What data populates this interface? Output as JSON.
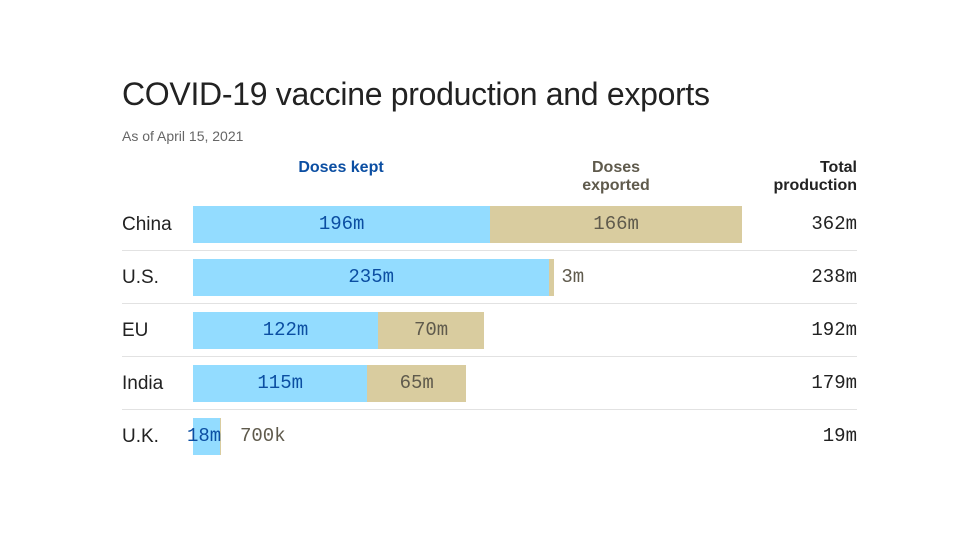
{
  "chart_data": {
    "type": "bar",
    "stacked": true,
    "orientation": "horizontal",
    "title": "COVID-19 vaccine production and exports",
    "subtitle": "As of April 15, 2021",
    "column_headers": {
      "kept": "Doses kept",
      "exported": "Doses exported",
      "total": "Total production"
    },
    "categories": [
      "China",
      "U.S.",
      "EU",
      "India",
      "U.K."
    ],
    "series": [
      {
        "name": "Doses kept",
        "values": [
          196,
          235,
          122,
          115,
          18
        ],
        "labels": [
          "196m",
          "235m",
          "122m",
          "115m",
          "18m"
        ],
        "color": "#93dcff",
        "label_color": "#0b4ea2"
      },
      {
        "name": "Doses exported",
        "values": [
          166,
          3,
          70,
          65,
          0.7
        ],
        "labels": [
          "166m",
          "3m",
          "70m",
          "65m",
          "700k"
        ],
        "color": "#d9cc9f",
        "label_color": "#5f5a4c"
      }
    ],
    "totals": [
      "362m",
      "238m",
      "192m",
      "179m",
      "19m"
    ],
    "unit": "million doses"
  }
}
